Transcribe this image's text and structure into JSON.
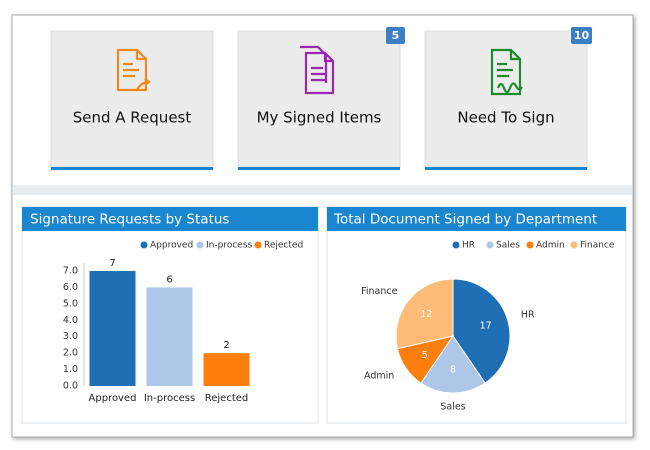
{
  "tiles": [
    {
      "label": "Send A Request"
    },
    {
      "label": "My Signed Items",
      "badge": 5
    },
    {
      "label": "Need To Sign",
      "badge": 10
    }
  ],
  "chart_data": [
    {
      "type": "bar",
      "title": "Signature Requests by Status",
      "categories": [
        "Approved",
        "In-process",
        "Rejected"
      ],
      "values": [
        7,
        6,
        2
      ],
      "colors": [
        "#1f6fb4",
        "#aec7e8",
        "#ff7f0e"
      ],
      "ylim": [
        0,
        7.5
      ],
      "yticks": [
        {
          "value": 0,
          "label": "0.0"
        },
        {
          "value": 1,
          "label": "1.0"
        },
        {
          "value": 2,
          "label": "2.0"
        },
        {
          "value": 3,
          "label": "3.0"
        },
        {
          "value": 4,
          "label": "4.0"
        },
        {
          "value": 5,
          "label": "5.0"
        },
        {
          "value": 6,
          "label": "6.0"
        },
        {
          "value": 7,
          "label": "7.0"
        }
      ],
      "legend": "top-right"
    },
    {
      "type": "pie",
      "title": "Total Document Signed by Department",
      "categories": [
        "HR",
        "Sales",
        "Admin",
        "Finance"
      ],
      "values": [
        17,
        8,
        5,
        12
      ],
      "colors": [
        "#1f6fb4",
        "#aec7e8",
        "#ff7f0e",
        "#ffbb78"
      ],
      "legend": "top-right"
    }
  ]
}
